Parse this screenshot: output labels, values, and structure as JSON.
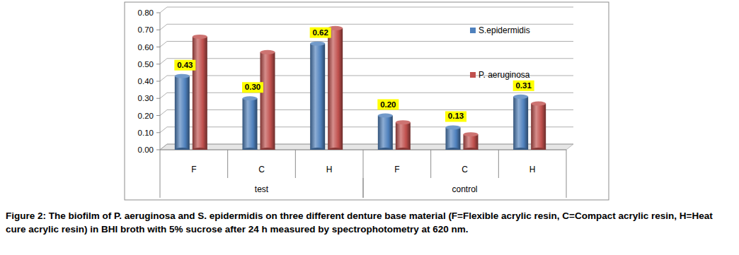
{
  "chart_data": {
    "type": "bar",
    "title": "Figure 2: The biofilm of P. aeruginosa and S. epidermidis on three different denture base material (F=Flexible acrylic resin, C=Compact acrylic resin, H=Heat cure acrylic resin) in BHI broth with 5% sucrose after 24 h measured by spectrophotometry at 620 nm.",
    "categories": [
      "F",
      "C",
      "H",
      "F",
      "C",
      "H"
    ],
    "category_groups": [
      {
        "name": "test",
        "size": 3
      },
      {
        "name": "control",
        "size": 3
      }
    ],
    "series": [
      {
        "name": "S.epidermidis",
        "color": "#4f81bd",
        "values": [
          0.43,
          0.3,
          0.62,
          0.2,
          0.13,
          0.31
        ],
        "data_labels": true,
        "value_labels": [
          "0.43",
          "0.30",
          "0.62",
          "0.20",
          "0.13",
          "0.31"
        ]
      },
      {
        "name": "P. aeruginosa",
        "color": "#c0504d",
        "values": [
          0.66,
          0.57,
          0.71,
          0.16,
          0.09,
          0.27
        ]
      }
    ],
    "ylim": [
      0,
      0.8
    ],
    "yticks": [
      {
        "value": 0,
        "label": "0.00"
      },
      {
        "value": 0.1,
        "label": "0.10"
      },
      {
        "value": 0.2,
        "label": "0.20"
      },
      {
        "value": 0.3,
        "label": "0.30"
      },
      {
        "value": 0.4,
        "label": "0.40"
      },
      {
        "value": 0.5,
        "label": "0.50"
      },
      {
        "value": 0.6,
        "label": "0.60"
      },
      {
        "value": 0.7,
        "label": "0.70"
      },
      {
        "value": 0.8,
        "label": "0.80"
      }
    ],
    "grid": true,
    "legend": "upper right"
  }
}
